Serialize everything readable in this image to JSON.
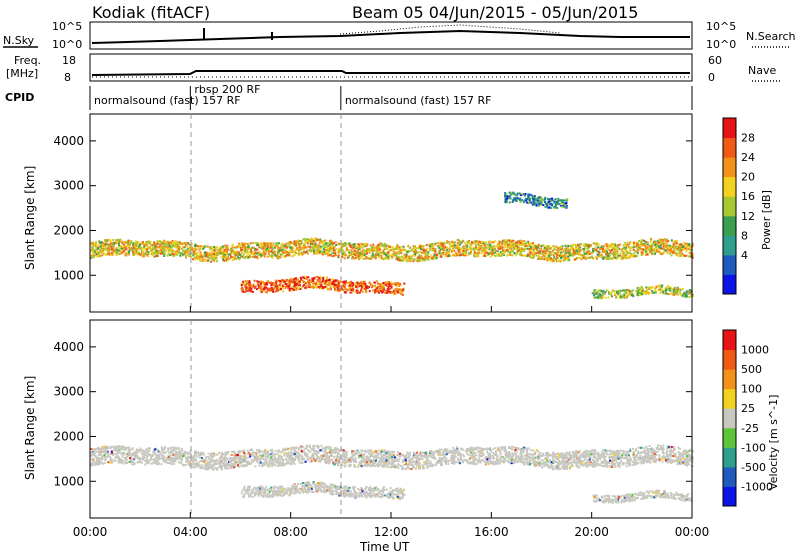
{
  "header": {
    "station": "Kodiak (fitACF)",
    "beam_info": "Beam 05  04/Jun/2015 - 05/Jun/2015"
  },
  "summary_panels": {
    "nsky_label": "N.Sky",
    "nsky_ticks": [
      "10^5",
      "10^0"
    ],
    "nsearch_label": "N.Search",
    "nsearch_ticks": [
      "10^5",
      "10^0"
    ],
    "freq_label": "Freq.",
    "freq_unit": "[MHz]",
    "freq_ticks": [
      "18",
      "8"
    ],
    "nave_label": "Nave",
    "nave_ticks": [
      "60",
      "0"
    ],
    "cpid_label": "CPID",
    "cpid_segments": [
      {
        "label": "normalsound (fast) 157 RF",
        "start_h": 0,
        "end_h": 4.0
      },
      {
        "label": "rbsp 200 RF",
        "start_h": 4.0,
        "end_h": 10.0
      },
      {
        "label": "normalsound (fast) 157 RF",
        "start_h": 10.0,
        "end_h": 24
      }
    ]
  },
  "colors": {
    "power_scale": [
      "#0a14e6",
      "#1e5bbd",
      "#2e9e8e",
      "#3aa050",
      "#a8c832",
      "#f2d21e",
      "#f29218",
      "#f05a14",
      "#e61414"
    ],
    "velocity_scale": [
      "#0a14e6",
      "#1e5bbd",
      "#2e9e8e",
      "#60c43a",
      "#c8c8c0",
      "#f2d21e",
      "#f29218",
      "#f05a14",
      "#e61414"
    ]
  },
  "chart_data": [
    {
      "type": "heatmap",
      "title": "Power",
      "xlabel": "",
      "ylabel": "Slant Range [km]",
      "xlim": [
        0,
        24
      ],
      "ylim": [
        180,
        4600
      ],
      "y_ticks": [
        1000,
        2000,
        3000,
        4000
      ],
      "colorbar_label": "Power [dB]",
      "colorbar_ticks": [
        "28",
        "24",
        "20",
        "16",
        "12",
        "8",
        "4"
      ],
      "scatter_bands": [
        {
          "t_start": 0.0,
          "t_end": 24.0,
          "r_center": 1580,
          "r_width": 350,
          "level": 5
        },
        {
          "t_start": 6.0,
          "t_end": 12.5,
          "r_center": 780,
          "r_width": 260,
          "level": 7
        },
        {
          "t_start": 16.5,
          "t_end": 19.0,
          "r_center": 2700,
          "r_width": 220,
          "level": 2
        },
        {
          "t_start": 20.0,
          "t_end": 24.0,
          "r_center": 620,
          "r_width": 180,
          "level": 4
        }
      ]
    },
    {
      "type": "heatmap",
      "title": "Velocity",
      "xlabel": "Time UT",
      "ylabel": "Slant Range [km]",
      "xlim": [
        0,
        24
      ],
      "ylim": [
        180,
        4600
      ],
      "y_ticks": [
        1000,
        2000,
        3000,
        4000
      ],
      "x_ticks": [
        "00:00",
        "04:00",
        "08:00",
        "12:00",
        "16:00",
        "20:00",
        "00:00"
      ],
      "colorbar_label": "Velocity [m s^-1]",
      "colorbar_ticks": [
        "1000",
        "500",
        "100",
        "25",
        "-25",
        "-100",
        "-500",
        "-1000"
      ],
      "scatter_bands": [
        {
          "t_start": 0.0,
          "t_end": 24.0,
          "r_center": 1550,
          "r_width": 380,
          "level": 4
        },
        {
          "t_start": 6.0,
          "t_end": 12.5,
          "r_center": 800,
          "r_width": 240,
          "level": 4
        },
        {
          "t_start": 20.0,
          "t_end": 24.0,
          "r_center": 650,
          "r_width": 160,
          "level": 4
        }
      ]
    }
  ]
}
